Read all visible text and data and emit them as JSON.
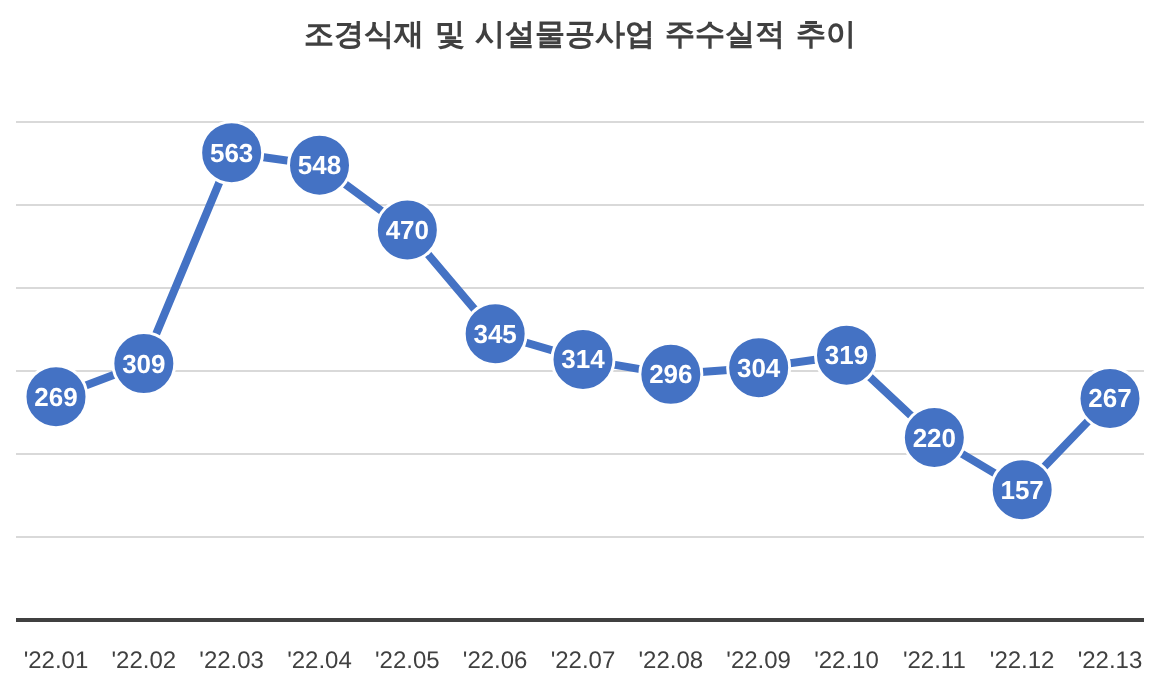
{
  "chart_data": {
    "type": "line",
    "title": "조경식재 및 시설물공사업 주수실적 추이",
    "categories": [
      "'22.01",
      "'22.02",
      "'22.03",
      "'22.04",
      "'22.05",
      "'22.06",
      "'22.07",
      "'22.08",
      "'22.09",
      "'22.10",
      "'22.11",
      "'22.12",
      "'22.13"
    ],
    "series": [
      {
        "color": "#4472c4",
        "values": [
          269,
          309,
          563,
          548,
          470,
          345,
          314,
          296,
          304,
          319,
          220,
          157,
          267
        ]
      }
    ],
    "ylim": [
      0,
      600
    ],
    "yticks": [
      {
        "value": 0,
        "label": null
      },
      {
        "value": 100,
        "label": null
      },
      {
        "value": 200,
        "label": null
      },
      {
        "value": 300,
        "label": null
      },
      {
        "value": 400,
        "label": null
      },
      {
        "value": 500,
        "label": null
      },
      {
        "value": 600,
        "label": null
      }
    ],
    "grid": "y",
    "tick_labels": "x",
    "marker": "circle",
    "line_style": "solid",
    "data_labels": true
  }
}
